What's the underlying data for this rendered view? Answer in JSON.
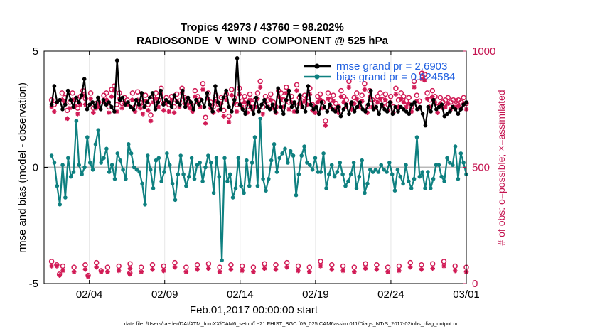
{
  "chart_data": {
    "type": "line",
    "title_line1": "Tropics 42973 / 43760 = 98.202%",
    "title_line2": "RADIOSONDE_V_WIND_COMPONENT @ 525 hPa",
    "xlabel": "Feb.01,2017 00:00:00 start",
    "ylabel": "rmse and bias (model - observation)",
    "ylabel_right": "# of obs: o=possible; ×=assimilated",
    "footer": "data file: /Users/raeder/DAI/ATM_forcXX/CAM6_setup/f.e21.FHIST_BGC.f09_025.CAM6assim.011/Diags_NTrS_2017-02/obs_diag_output.nc",
    "xlim": [
      0.5,
      28.5
    ],
    "ylim": [
      -5,
      5
    ],
    "ylim_right": [
      0,
      1000
    ],
    "x_ticks": [
      3.5,
      8.5,
      13.5,
      18.5,
      23.5,
      28.5
    ],
    "x_tick_labels": [
      "02/04",
      "02/09",
      "02/14",
      "02/19",
      "02/24",
      "03/01"
    ],
    "y_ticks": [
      -5,
      0,
      5
    ],
    "y_tick_labels": [
      "-5",
      "0",
      "5"
    ],
    "y_ticks_right": [
      0,
      500,
      1000
    ],
    "y_tick_labels_right": [
      "0",
      "500",
      "1000"
    ],
    "colors": {
      "rmse": "#000000",
      "bias": "#0e8080",
      "obs": "#d11a55",
      "legend_text": "#1f5fe0",
      "zero_line": "#b8b8b8"
    },
    "series": [
      {
        "name": "rmse grand pr = 2.6903",
        "values": [
          2.7,
          3.5,
          2.8,
          2.9,
          2.5,
          2.7,
          3.3,
          2.9,
          2.6,
          3.0,
          2.8,
          3.1,
          3.8,
          2.5,
          2.7,
          2.8,
          2.6,
          3.0,
          2.5,
          2.9,
          2.7,
          2.8,
          2.6,
          2.4,
          4.6,
          2.9,
          3.0,
          2.7,
          2.8,
          2.6,
          2.5,
          2.9,
          2.7,
          3.2,
          2.6,
          2.8,
          3.0,
          3.2,
          2.5,
          2.8,
          3.3,
          2.7,
          2.9,
          2.8,
          2.6,
          3.1,
          2.8,
          2.7,
          3.3,
          2.6,
          3.0,
          2.8,
          2.5,
          2.9,
          2.7,
          2.9,
          2.6,
          3.2,
          2.7,
          2.4,
          3.5,
          2.8,
          2.5,
          3.0,
          3.3,
          2.6,
          2.4,
          2.9,
          4.7,
          2.7,
          2.5,
          2.3,
          2.8,
          2.6,
          2.3,
          3.0,
          2.4,
          2.7,
          2.9,
          2.6,
          2.5,
          2.7,
          2.4,
          3.4,
          2.6,
          2.3,
          2.9,
          3.3,
          2.6,
          2.8,
          2.4,
          3.1,
          2.6,
          2.4,
          3.5,
          2.7,
          2.5,
          2.6,
          2.3,
          2.8,
          2.6,
          2.4,
          2.7,
          2.5,
          2.4,
          2.6,
          2.2,
          2.5,
          2.7,
          2.3,
          2.8,
          2.4,
          2.6,
          2.8,
          2.5,
          2.4,
          2.7,
          3.3,
          2.5,
          2.6,
          2.3,
          2.7,
          2.5,
          2.4,
          2.8,
          2.3,
          2.6,
          2.4,
          2.6,
          2.5,
          2.4,
          2.3,
          2.7,
          2.8,
          2.5,
          2.6,
          2.3,
          1.8,
          2.6,
          2.4,
          2.9,
          2.5,
          2.6,
          2.7,
          2.2,
          2.3,
          2.4,
          2.6,
          2.5,
          2.3,
          2.5,
          2.7,
          2.8
        ]
      },
      {
        "name": "bias grand pr = 0.024584",
        "values": [
          0.5,
          0.2,
          -0.8,
          -1.6,
          0.1,
          -1.3,
          0.4,
          -0.4,
          -0.2,
          2.0,
          0.1,
          -0.3,
          0.0,
          1.3,
          0.2,
          -0.1,
          1.0,
          1.6,
          0.2,
          0.4,
          0.8,
          -0.2,
          0.1,
          -0.5,
          0.6,
          0.3,
          -0.1,
          -0.5,
          1.0,
          0.6,
          0.0,
          -0.1,
          -0.2,
          -0.7,
          -1.6,
          0.5,
          -0.1,
          -0.9,
          0.3,
          0.4,
          -0.6,
          -0.2,
          0.6,
          0.1,
          -0.7,
          -1.4,
          -0.3,
          0.5,
          -0.3,
          -0.8,
          -0.4,
          0.4,
          -0.5,
          0.1,
          0.2,
          -0.6,
          0.0,
          0.5,
          0.2,
          -1.1,
          0.4,
          -0.4,
          -4.0,
          0.4,
          -0.6,
          -0.3,
          -1.3,
          -0.9,
          0.4,
          -0.8,
          -1.1,
          0.3,
          -0.8,
          0.2,
          1.3,
          -0.8,
          2.1,
          -0.5,
          -1.0,
          -0.5,
          0.3,
          1.0,
          -0.2,
          0.4,
          0.6,
          0.8,
          0.2,
          0.7,
          0.5,
          -1.2,
          -0.3,
          0.5,
          0.9,
          0.2,
          0.1,
          -0.1,
          0.4,
          -0.2,
          -0.2,
          0.6,
          -0.9,
          -0.3,
          0.1,
          -0.4,
          -0.2,
          0.2,
          -0.3,
          -0.8,
          -0.6,
          -0.3,
          0.2,
          -0.9,
          -0.4,
          0.3,
          -1.1,
          -0.7,
          -0.1,
          -0.2,
          -0.1,
          -0.2,
          0.1,
          -0.1,
          -0.2,
          0.2,
          -0.3,
          -1.0,
          -0.1,
          -0.4,
          -0.7,
          0.1,
          -0.6,
          -0.9,
          -0.5,
          1.3,
          -0.4,
          -0.2,
          -0.9,
          -0.2,
          -0.9,
          -0.5,
          0.1,
          0.1,
          -0.4,
          -0.6,
          0.4,
          0.2,
          0.1,
          0.9,
          -0.5,
          0.6,
          0.2,
          -0.3
        ]
      },
      {
        "name": "obs possible (o)",
        "axis": "right",
        "values": [
          790,
          770,
          80,
          40,
          820,
          800,
          745,
          780,
          820,
          790,
          755,
          805,
          830,
          795,
          35,
          820,
          755,
          775,
          780,
          55,
          810,
          820,
          760,
          835,
          850,
          770,
          820,
          775,
          800,
          790,
          45,
          820,
          760,
          825,
          780,
          760,
          810,
          770,
          725,
          805,
          820,
          790,
          840,
          775,
          800,
          770,
          805,
          760,
          815,
          785,
          840,
          800,
          795,
          780,
          765,
          830,
          805,
          790,
          860,
          715,
          820,
          780,
          760,
          810,
          770,
          800,
          745,
          815,
          720,
          835,
          800,
          770,
          840,
          785,
          805,
          760,
          815,
          775,
          790,
          820,
          870,
          760,
          805,
          790,
          815,
          780,
          760,
          830,
          820,
          790,
          845,
          780,
          805,
          770,
          855,
          800,
          785,
          810,
          800,
          840,
          770,
          760,
          805,
          815,
          780,
          700,
          820,
          790,
          810,
          775,
          760,
          830,
          805,
          790,
          870,
          775,
          800,
          820,
          785,
          810,
          860,
          760,
          830,
          790,
          780,
          805,
          820,
          790,
          815,
          770,
          805,
          760,
          840,
          790,
          820,
          805,
          785,
          800,
          760,
          870,
          810,
          785,
          905,
          900,
          820,
          790,
          830,
          805,
          760,
          800,
          780,
          790,
          800,
          780,
          790,
          785,
          790,
          780,
          800,
          775
        ]
      },
      {
        "name": "obs assimilated (×)",
        "axis": "right",
        "values": [
          760,
          740,
          75,
          35,
          790,
          780,
          710,
          755,
          790,
          765,
          730,
          770,
          810,
          770,
          30,
          795,
          735,
          755,
          760,
          50,
          780,
          790,
          735,
          805,
          830,
          740,
          795,
          755,
          775,
          770,
          40,
          790,
          740,
          790,
          755,
          730,
          785,
          745,
          700,
          780,
          795,
          760,
          815,
          745,
          780,
          740,
          785,
          735,
          785,
          760,
          820,
          775,
          770,
          755,
          740,
          805,
          780,
          760,
          835,
          690,
          795,
          755,
          735,
          785,
          745,
          775,
          720,
          790,
          695,
          810,
          775,
          740,
          815,
          760,
          780,
          735,
          790,
          750,
          760,
          795,
          845,
          730,
          780,
          760,
          790,
          755,
          735,
          805,
          795,
          760,
          820,
          750,
          780,
          740,
          830,
          775,
          760,
          785,
          770,
          815,
          745,
          735,
          780,
          790,
          755,
          680,
          795,
          760,
          785,
          750,
          735,
          805,
          780,
          760,
          845,
          750,
          775,
          795,
          760,
          785,
          835,
          735,
          805,
          760,
          755,
          780,
          795,
          765,
          790,
          745,
          780,
          735,
          815,
          760,
          795,
          780,
          760,
          775,
          740,
          845,
          785,
          755,
          880,
          875,
          795,
          760,
          805,
          780,
          735,
          775,
          755,
          760,
          775,
          750,
          760,
          760,
          765,
          755,
          775,
          750
        ]
      }
    ],
    "baseline_counts_right": {
      "possible": [
        95,
        75,
        70,
        80,
        90,
        70,
        75,
        85,
        70,
        80,
        75,
        90,
        70,
        80,
        85,
        70,
        80,
        75,
        70,
        85,
        80,
        90,
        75,
        70,
        95,
        80,
        75,
        70,
        85,
        80,
        70,
        75,
        90,
        80,
        85,
        95,
        75,
        70
      ],
      "assimilated": [
        75,
        55,
        50,
        60,
        70,
        50,
        55,
        65,
        50,
        60,
        55,
        70,
        50,
        60,
        65,
        50,
        60,
        55,
        50,
        65,
        60,
        70,
        55,
        50,
        75,
        60,
        55,
        50,
        65,
        60,
        50,
        55,
        70,
        60,
        65,
        75,
        55,
        50
      ]
    },
    "legend_position": "top-right"
  }
}
